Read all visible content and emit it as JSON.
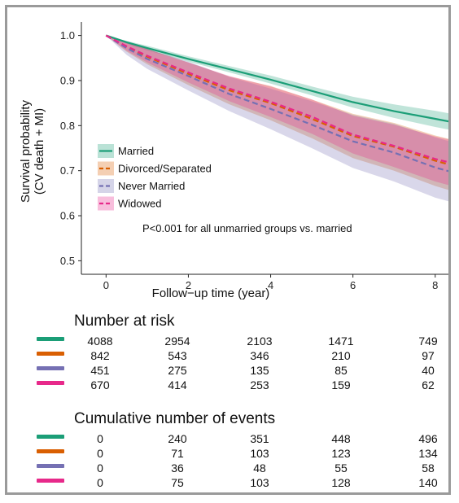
{
  "colors": {
    "married": "#1b9e77",
    "divorced": "#d95f02",
    "never": "#7570b3",
    "widowed": "#e7298a"
  },
  "chart_data": {
    "type": "line",
    "title": "",
    "xlabel": "Follow−up time (year)",
    "ylabel": "Survival probability",
    "ylabel2": "(CV death + MI)",
    "xlim": [
      -0.6,
      8.4
    ],
    "ylim": [
      0.47,
      1.03
    ],
    "xticks": [
      0,
      2,
      4,
      6,
      8
    ],
    "xtick_labels": [
      "0",
      "2",
      "4",
      "6",
      "8"
    ],
    "yticks": [
      0.5,
      0.6,
      0.7,
      0.8,
      0.9,
      1.0
    ],
    "ytick_labels": [
      "0.5",
      "0.6",
      "0.7",
      "0.8",
      "0.9",
      "1.0"
    ],
    "grid": false,
    "legend_position": "middle-left",
    "annotation": "P<0.001 for all unmarried groups vs. married",
    "series": [
      {
        "name": "Married",
        "color": "#1b9e77",
        "dash": "solid",
        "x": [
          0,
          0.5,
          1,
          2,
          3,
          4,
          5,
          6,
          7,
          8,
          8.4
        ],
        "y": [
          1.0,
          0.985,
          0.972,
          0.948,
          0.925,
          0.902,
          0.877,
          0.852,
          0.832,
          0.815,
          0.808
        ],
        "lower": [
          1.0,
          0.982,
          0.967,
          0.942,
          0.918,
          0.893,
          0.867,
          0.84,
          0.817,
          0.797,
          0.79
        ],
        "upper": [
          1.0,
          0.988,
          0.977,
          0.954,
          0.932,
          0.911,
          0.887,
          0.864,
          0.847,
          0.833,
          0.826
        ]
      },
      {
        "name": "Divorced/Separated",
        "color": "#d95f02",
        "dash": "dash",
        "x": [
          0,
          0.5,
          1,
          2,
          3,
          4,
          5,
          6,
          7,
          8,
          8.4
        ],
        "y": [
          1.0,
          0.975,
          0.953,
          0.915,
          0.878,
          0.85,
          0.815,
          0.777,
          0.753,
          0.722,
          0.712
        ],
        "lower": [
          1.0,
          0.964,
          0.936,
          0.89,
          0.847,
          0.812,
          0.772,
          0.728,
          0.7,
          0.666,
          0.655
        ],
        "upper": [
          1.0,
          0.986,
          0.97,
          0.94,
          0.909,
          0.888,
          0.858,
          0.826,
          0.806,
          0.778,
          0.769
        ]
      },
      {
        "name": "Never Married",
        "color": "#7570b3",
        "dash": "dash",
        "x": [
          0,
          0.5,
          1,
          2,
          3,
          4,
          5,
          6,
          7,
          8,
          8.4
        ],
        "y": [
          1.0,
          0.972,
          0.948,
          0.91,
          0.87,
          0.837,
          0.802,
          0.765,
          0.74,
          0.707,
          0.697
        ],
        "lower": [
          1.0,
          0.957,
          0.926,
          0.878,
          0.832,
          0.792,
          0.75,
          0.706,
          0.676,
          0.64,
          0.63
        ],
        "upper": [
          1.0,
          0.987,
          0.97,
          0.942,
          0.908,
          0.882,
          0.854,
          0.824,
          0.804,
          0.774,
          0.764
        ]
      },
      {
        "name": "Widowed",
        "color": "#e7298a",
        "dash": "dash",
        "x": [
          0,
          0.5,
          1,
          2,
          3,
          4,
          5,
          6,
          7,
          8,
          8.4
        ],
        "y": [
          1.0,
          0.976,
          0.955,
          0.918,
          0.882,
          0.853,
          0.82,
          0.78,
          0.755,
          0.726,
          0.717
        ],
        "lower": [
          1.0,
          0.966,
          0.94,
          0.896,
          0.854,
          0.819,
          0.782,
          0.738,
          0.708,
          0.676,
          0.666
        ],
        "upper": [
          1.0,
          0.986,
          0.97,
          0.94,
          0.91,
          0.887,
          0.858,
          0.822,
          0.802,
          0.776,
          0.768
        ]
      }
    ]
  },
  "risk_table": {
    "title": "Number at risk",
    "rows": [
      {
        "group": "Married",
        "values": [
          "4088",
          "2954",
          "2103",
          "1471",
          "749"
        ]
      },
      {
        "group": "Divorced/Separated",
        "values": [
          "842",
          "543",
          "346",
          "210",
          "97"
        ]
      },
      {
        "group": "Never Married",
        "values": [
          "451",
          "275",
          "135",
          "85",
          "40"
        ]
      },
      {
        "group": "Widowed",
        "values": [
          "670",
          "414",
          "253",
          "159",
          "62"
        ]
      }
    ]
  },
  "events_table": {
    "title": "Cumulative number of events",
    "rows": [
      {
        "group": "Married",
        "values": [
          "0",
          "240",
          "351",
          "448",
          "496"
        ]
      },
      {
        "group": "Divorced/Separated",
        "values": [
          "0",
          "71",
          "103",
          "123",
          "134"
        ]
      },
      {
        "group": "Never Married",
        "values": [
          "0",
          "36",
          "48",
          "55",
          "58"
        ]
      },
      {
        "group": "Widowed",
        "values": [
          "0",
          "75",
          "103",
          "128",
          "140"
        ]
      }
    ]
  }
}
